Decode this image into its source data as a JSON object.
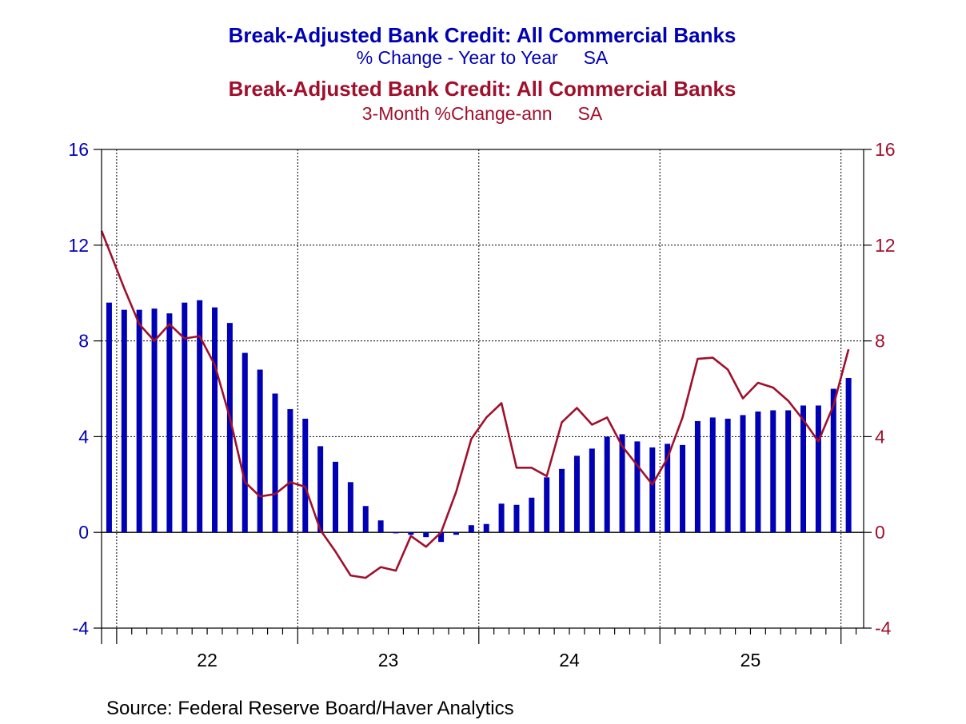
{
  "chart_data": {
    "type": "bar+line",
    "titles": [
      {
        "text": "Break-Adjusted Bank Credit: All Commercial Banks",
        "color": "#0000b4"
      },
      {
        "text": "% Change - Year to Year     SA",
        "color": "#0000b4"
      },
      {
        "text": "Break-Adjusted Bank Credit: All Commercial Banks",
        "color": "#a0102c"
      },
      {
        "text": "3-Month %Change-ann     SA",
        "color": "#a0102c"
      }
    ],
    "ylim": [
      -4,
      16
    ],
    "yticks": [
      "16",
      "12",
      "8",
      "4",
      "0",
      "-4"
    ],
    "ytick_values": [
      16,
      12,
      8,
      4,
      0,
      -4
    ],
    "x_year_labels": [
      "22",
      "23",
      "24",
      "25"
    ],
    "x_start": "2021-12",
    "x_end": "2026-02",
    "grid": true,
    "series": [
      {
        "type": "bar",
        "color": "#0000b4",
        "values": [
          9.6,
          9.3,
          9.3,
          9.35,
          9.15,
          9.6,
          9.7,
          9.4,
          8.75,
          7.5,
          6.8,
          5.8,
          5.15,
          4.75,
          3.6,
          2.95,
          2.1,
          1.1,
          0.5,
          0.0,
          -0.1,
          -0.2,
          -0.4,
          -0.1,
          0.3,
          0.35,
          1.2,
          1.15,
          1.45,
          2.3,
          2.65,
          3.2,
          3.5,
          4.0,
          4.1,
          3.8,
          3.55,
          3.7,
          3.65,
          4.65,
          4.8,
          4.75,
          4.9,
          5.05,
          5.1,
          5.1,
          5.3,
          5.3,
          6.0,
          6.45
        ]
      },
      {
        "type": "line",
        "color": "#a0102c",
        "values": [
          12.6,
          10.2,
          8.7,
          8.0,
          8.7,
          8.1,
          8.2,
          7.0,
          4.8,
          2.1,
          1.5,
          1.6,
          2.1,
          1.9,
          0.1,
          -0.8,
          -1.8,
          -1.9,
          -1.45,
          -1.6,
          -0.15,
          -0.6,
          0.0,
          1.7,
          3.9,
          4.8,
          5.4,
          2.7,
          2.7,
          2.35,
          4.6,
          5.2,
          4.5,
          4.8,
          3.6,
          2.8,
          2.0,
          3.1,
          4.8,
          7.25,
          7.3,
          6.8,
          5.6,
          6.25,
          6.05,
          5.5,
          4.7,
          3.8,
          5.3,
          7.65
        ]
      }
    ]
  },
  "source": "Source:  Federal Reserve Board/Haver Analytics"
}
